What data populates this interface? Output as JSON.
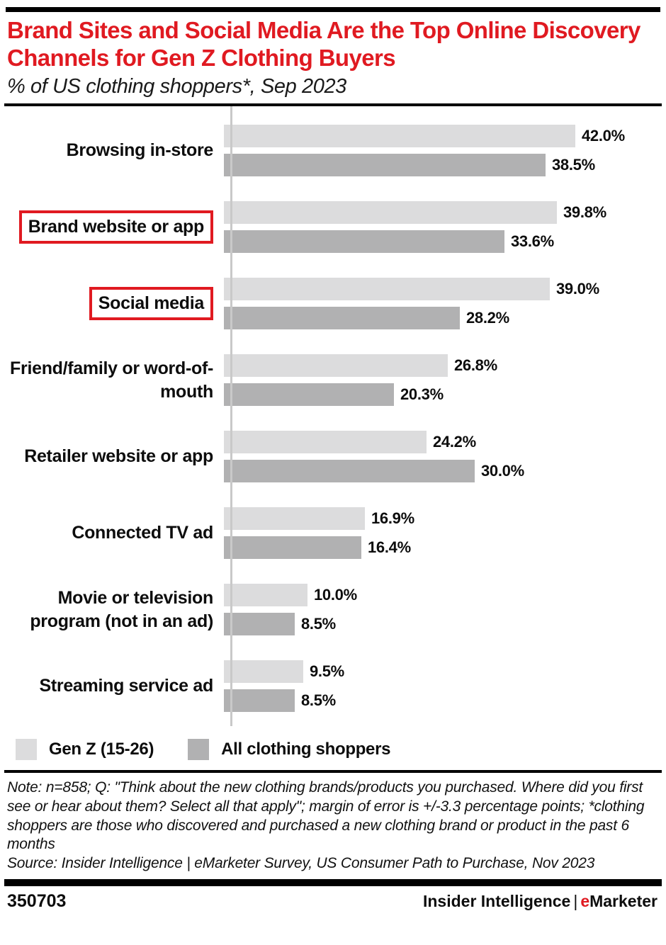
{
  "header": {
    "title": "Brand Sites and Social Media Are the Top Online Discovery Channels for Gen Z Clothing Buyers",
    "subtitle": "% of US clothing shoppers*, Sep 2023"
  },
  "chart_data": {
    "type": "bar",
    "orientation": "horizontal",
    "title": "Brand Sites and Social Media Are the Top Online Discovery Channels for Gen Z Clothing Buyers",
    "subtitle": "% of US clothing shoppers*, Sep 2023",
    "categories": [
      "Browsing in-store",
      "Brand website or app",
      "Social media",
      "Friend/family or word-of-mouth",
      "Retailer website or app",
      "Connected TV ad",
      "Movie or television program (not in an ad)",
      "Streaming service ad"
    ],
    "highlighted_categories": [
      "Brand website or app",
      "Social media"
    ],
    "series": [
      {
        "name": "Gen Z (15-26)",
        "color": "#dcdcdd",
        "values": [
          42.0,
          39.8,
          39.0,
          26.8,
          24.2,
          16.9,
          10.0,
          9.5
        ]
      },
      {
        "name": "All clothing shoppers",
        "color": "#b1b1b2",
        "values": [
          38.5,
          33.6,
          28.2,
          20.3,
          30.0,
          16.4,
          8.5,
          8.5
        ]
      }
    ],
    "value_suffix": "%",
    "value_decimals": 1,
    "xlim": [
      0,
      50
    ],
    "grid": false,
    "legend_position": "bottom-left"
  },
  "legend": {
    "items": [
      {
        "label": "Gen Z (15-26)",
        "color": "#dcdcdd"
      },
      {
        "label": "All clothing shoppers",
        "color": "#b1b1b2"
      }
    ]
  },
  "notes": {
    "note": "Note: n=858; Q: \"Think about the new clothing brands/products you purchased. Where did you first see or hear about them? Select all that apply\"; margin of error is +/-3.3 percentage points; *clothing shoppers are those who discovered and purchased a new clothing brand or product in the past 6 months",
    "source": "Source: Insider Intelligence | eMarketer Survey, US Consumer Path to Purchase, Nov 2023"
  },
  "footer": {
    "chart_id": "350703",
    "brand_left": "Insider Intelligence",
    "brand_separator": "|",
    "brand_e": "e",
    "brand_rest": "Marketer"
  },
  "colors": {
    "accent_red": "#e01a21",
    "bar_light": "#dcdcdd",
    "bar_dark": "#b1b1b2",
    "axis": "#c9c9c9",
    "rule_black": "#000000"
  }
}
